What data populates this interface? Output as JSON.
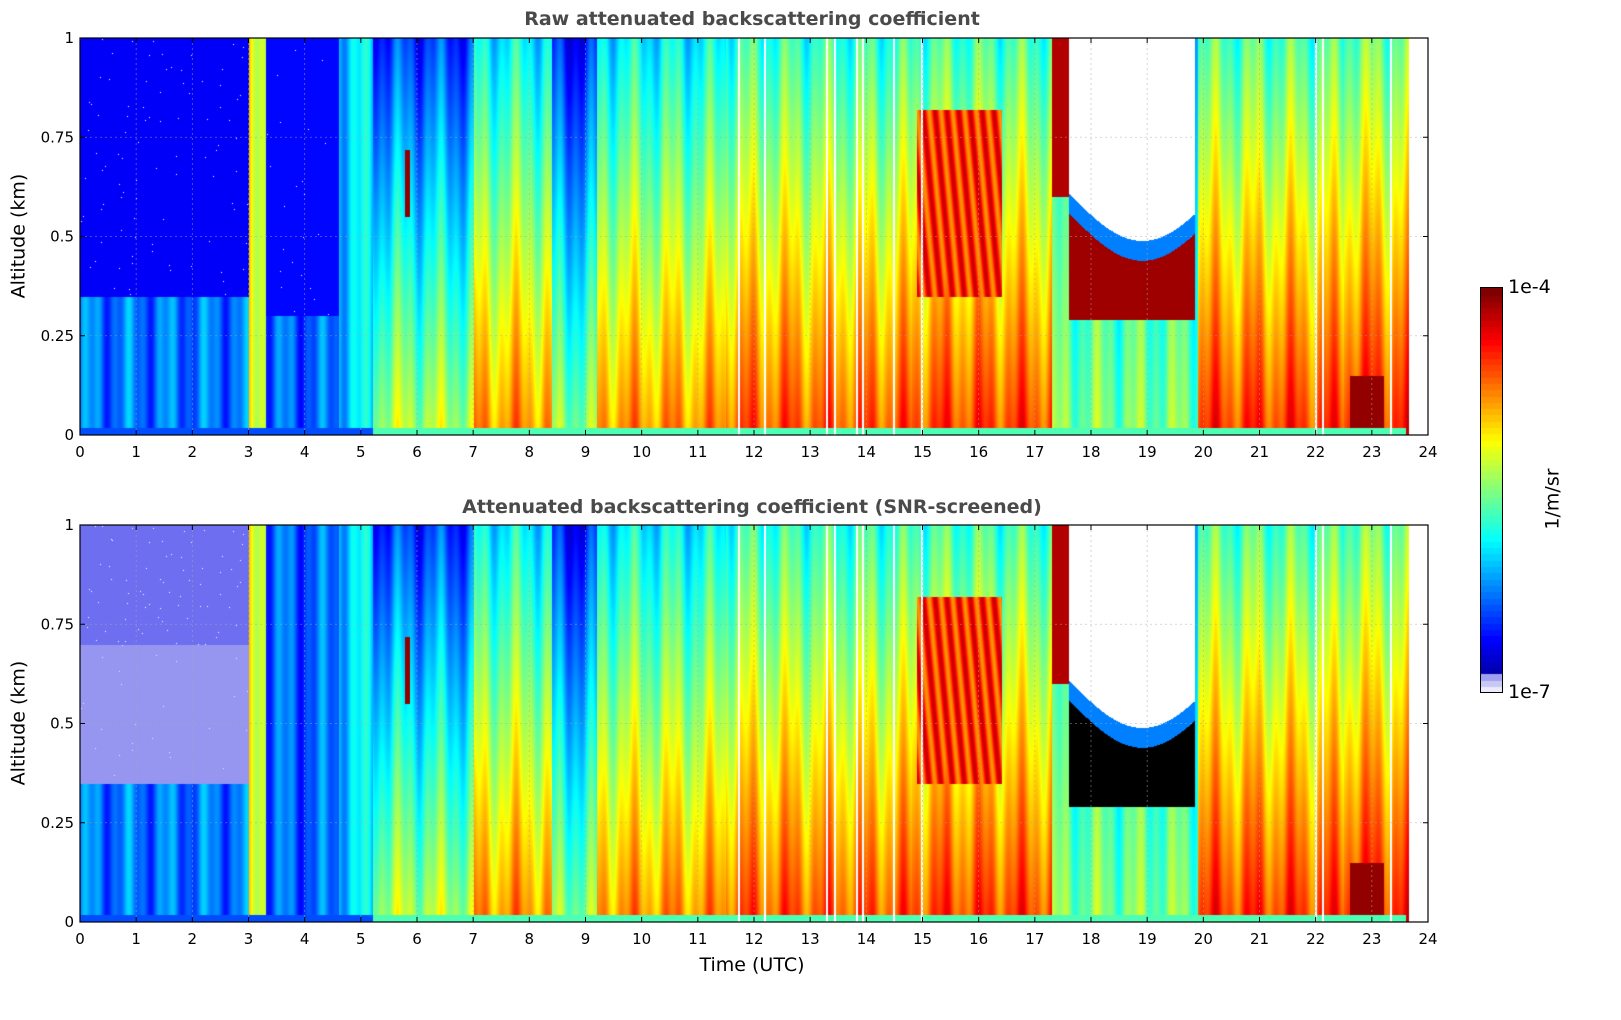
{
  "chart_data": [
    {
      "type": "heatmap",
      "title": "Raw attenuated backscattering coefficient",
      "xlabel": "",
      "ylabel": "Altitude (km)",
      "xlim": [
        0,
        24
      ],
      "ylim": [
        0,
        1
      ],
      "x_ticks": [
        "0",
        "1",
        "2",
        "3",
        "4",
        "5",
        "6",
        "7",
        "8",
        "9",
        "10",
        "11",
        "12",
        "13",
        "14",
        "15",
        "16",
        "17",
        "18",
        "19",
        "20",
        "21",
        "22",
        "23",
        "24"
      ],
      "y_ticks": [
        "0",
        "0.25",
        "0.5",
        "0.75",
        "1"
      ],
      "grid": true,
      "colormap": "jet",
      "color_scale": "log",
      "screened": false
    },
    {
      "type": "heatmap",
      "title": "Attenuated backscattering coefficient (SNR-screened)",
      "xlabel": "Time (UTC)",
      "ylabel": "Altitude (km)",
      "xlim": [
        0,
        24
      ],
      "ylim": [
        0,
        1
      ],
      "x_ticks": [
        "0",
        "1",
        "2",
        "3",
        "4",
        "5",
        "6",
        "7",
        "8",
        "9",
        "10",
        "11",
        "12",
        "13",
        "14",
        "15",
        "16",
        "17",
        "18",
        "19",
        "20",
        "21",
        "22",
        "23",
        "24"
      ],
      "y_ticks": [
        "0",
        "0.25",
        "0.5",
        "0.75",
        "1"
      ],
      "grid": true,
      "colormap": "jet",
      "color_scale": "log",
      "screened": true
    }
  ],
  "colorbar": {
    "min_label": "1e-7",
    "max_label": "1e-4",
    "label": "1/m/sr"
  },
  "colors": {
    "title": "#4a4a4a",
    "screened_black": "#000000",
    "missing": "#ffffff"
  },
  "white_gaps_hours": [
    11.72,
    12.18,
    13.28,
    13.42,
    13.82,
    13.92,
    14.48,
    14.98,
    21.98,
    22.12,
    23.32
  ]
}
